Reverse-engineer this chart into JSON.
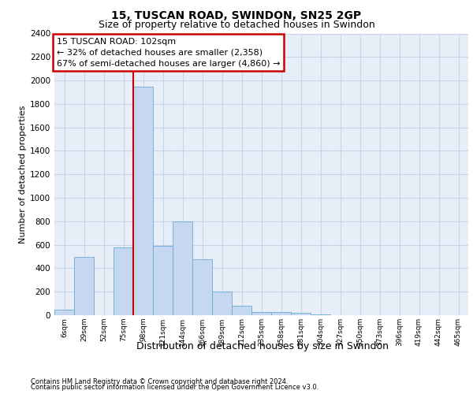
{
  "title1": "15, TUSCAN ROAD, SWINDON, SN25 2GP",
  "title2": "Size of property relative to detached houses in Swindon",
  "xlabel": "Distribution of detached houses by size in Swindon",
  "ylabel": "Number of detached properties",
  "footer1": "Contains HM Land Registry data © Crown copyright and database right 2024.",
  "footer2": "Contains public sector information licensed under the Open Government Licence v3.0.",
  "annotation_title": "15 TUSCAN ROAD: 102sqm",
  "annotation_line1": "← 32% of detached houses are smaller (2,358)",
  "annotation_line2": "67% of semi-detached houses are larger (4,860) →",
  "bar_labels": [
    "6sqm",
    "29sqm",
    "52sqm",
    "75sqm",
    "98sqm",
    "121sqm",
    "144sqm",
    "166sqm",
    "189sqm",
    "212sqm",
    "235sqm",
    "258sqm",
    "281sqm",
    "304sqm",
    "327sqm",
    "350sqm",
    "373sqm",
    "396sqm",
    "419sqm",
    "442sqm",
    "465sqm"
  ],
  "bar_values": [
    50,
    500,
    0,
    580,
    1950,
    590,
    800,
    480,
    200,
    80,
    30,
    25,
    20,
    5,
    0,
    0,
    0,
    0,
    0,
    0,
    0
  ],
  "bar_color": "#c5d8f0",
  "bar_edge_color": "#6aaad4",
  "bar_width": 1.0,
  "vline_color": "#cc0000",
  "vline_x": 3.5,
  "ylim": [
    0,
    2400
  ],
  "yticks": [
    0,
    200,
    400,
    600,
    800,
    1000,
    1200,
    1400,
    1600,
    1800,
    2000,
    2200,
    2400
  ],
  "grid_color": "#c8d4e8",
  "bg_color": "#e8eef8",
  "annotation_box_color": "#ffffff",
  "annotation_box_edge": "#cc0000",
  "title_fontsize": 10,
  "subtitle_fontsize": 9,
  "ylabel_fontsize": 8,
  "xlabel_fontsize": 9,
  "annotation_fontsize": 8,
  "tick_fontsize": 7.5,
  "xtick_fontsize": 6.5,
  "footer_fontsize": 6
}
